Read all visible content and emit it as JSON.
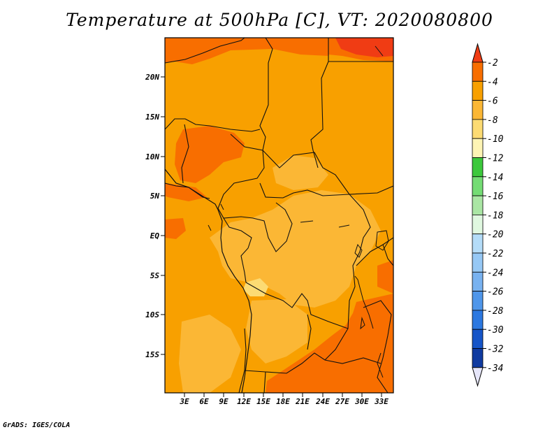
{
  "title": "Temperature at 500hPa [C], VT: 2020080800",
  "footer": "GrADS: IGES/COLA",
  "map": {
    "lat_ticks": [
      "20N",
      "15N",
      "10N",
      "5N",
      "EQ",
      "5S",
      "10S",
      "15S"
    ],
    "lon_ticks": [
      "3E",
      "6E",
      "9E",
      "12E",
      "15E",
      "18E",
      "21E",
      "24E",
      "27E",
      "30E",
      "33E"
    ]
  },
  "colorbar": {
    "labels": [
      "-2",
      "-4",
      "-6",
      "-8",
      "-10",
      "-12",
      "-14",
      "-16",
      "-18",
      "-20",
      "-22",
      "-24",
      "-26",
      "-28",
      "-30",
      "-32",
      "-34"
    ],
    "colors": [
      "#f03c14",
      "#f86e00",
      "#f8a000",
      "#fbb735",
      "#fcdb73",
      "#fdf4b4",
      "#3cc83c",
      "#74dc74",
      "#aae6a4",
      "#e0f8e0",
      "#b4dcf8",
      "#96c8f5",
      "#78b2f0",
      "#4f96ea",
      "#2c78e0",
      "#1655c8",
      "#0f3aa0",
      "#0a1c78",
      "#e6e6fa"
    ]
  },
  "field_colors": {
    "level_minus_4": "#f86e00",
    "level_minus_6": "#f8a000",
    "level_minus_8": "#fbb735",
    "level_minus_10": "#fcdb73",
    "level_minus_2": "#f03c14"
  }
}
